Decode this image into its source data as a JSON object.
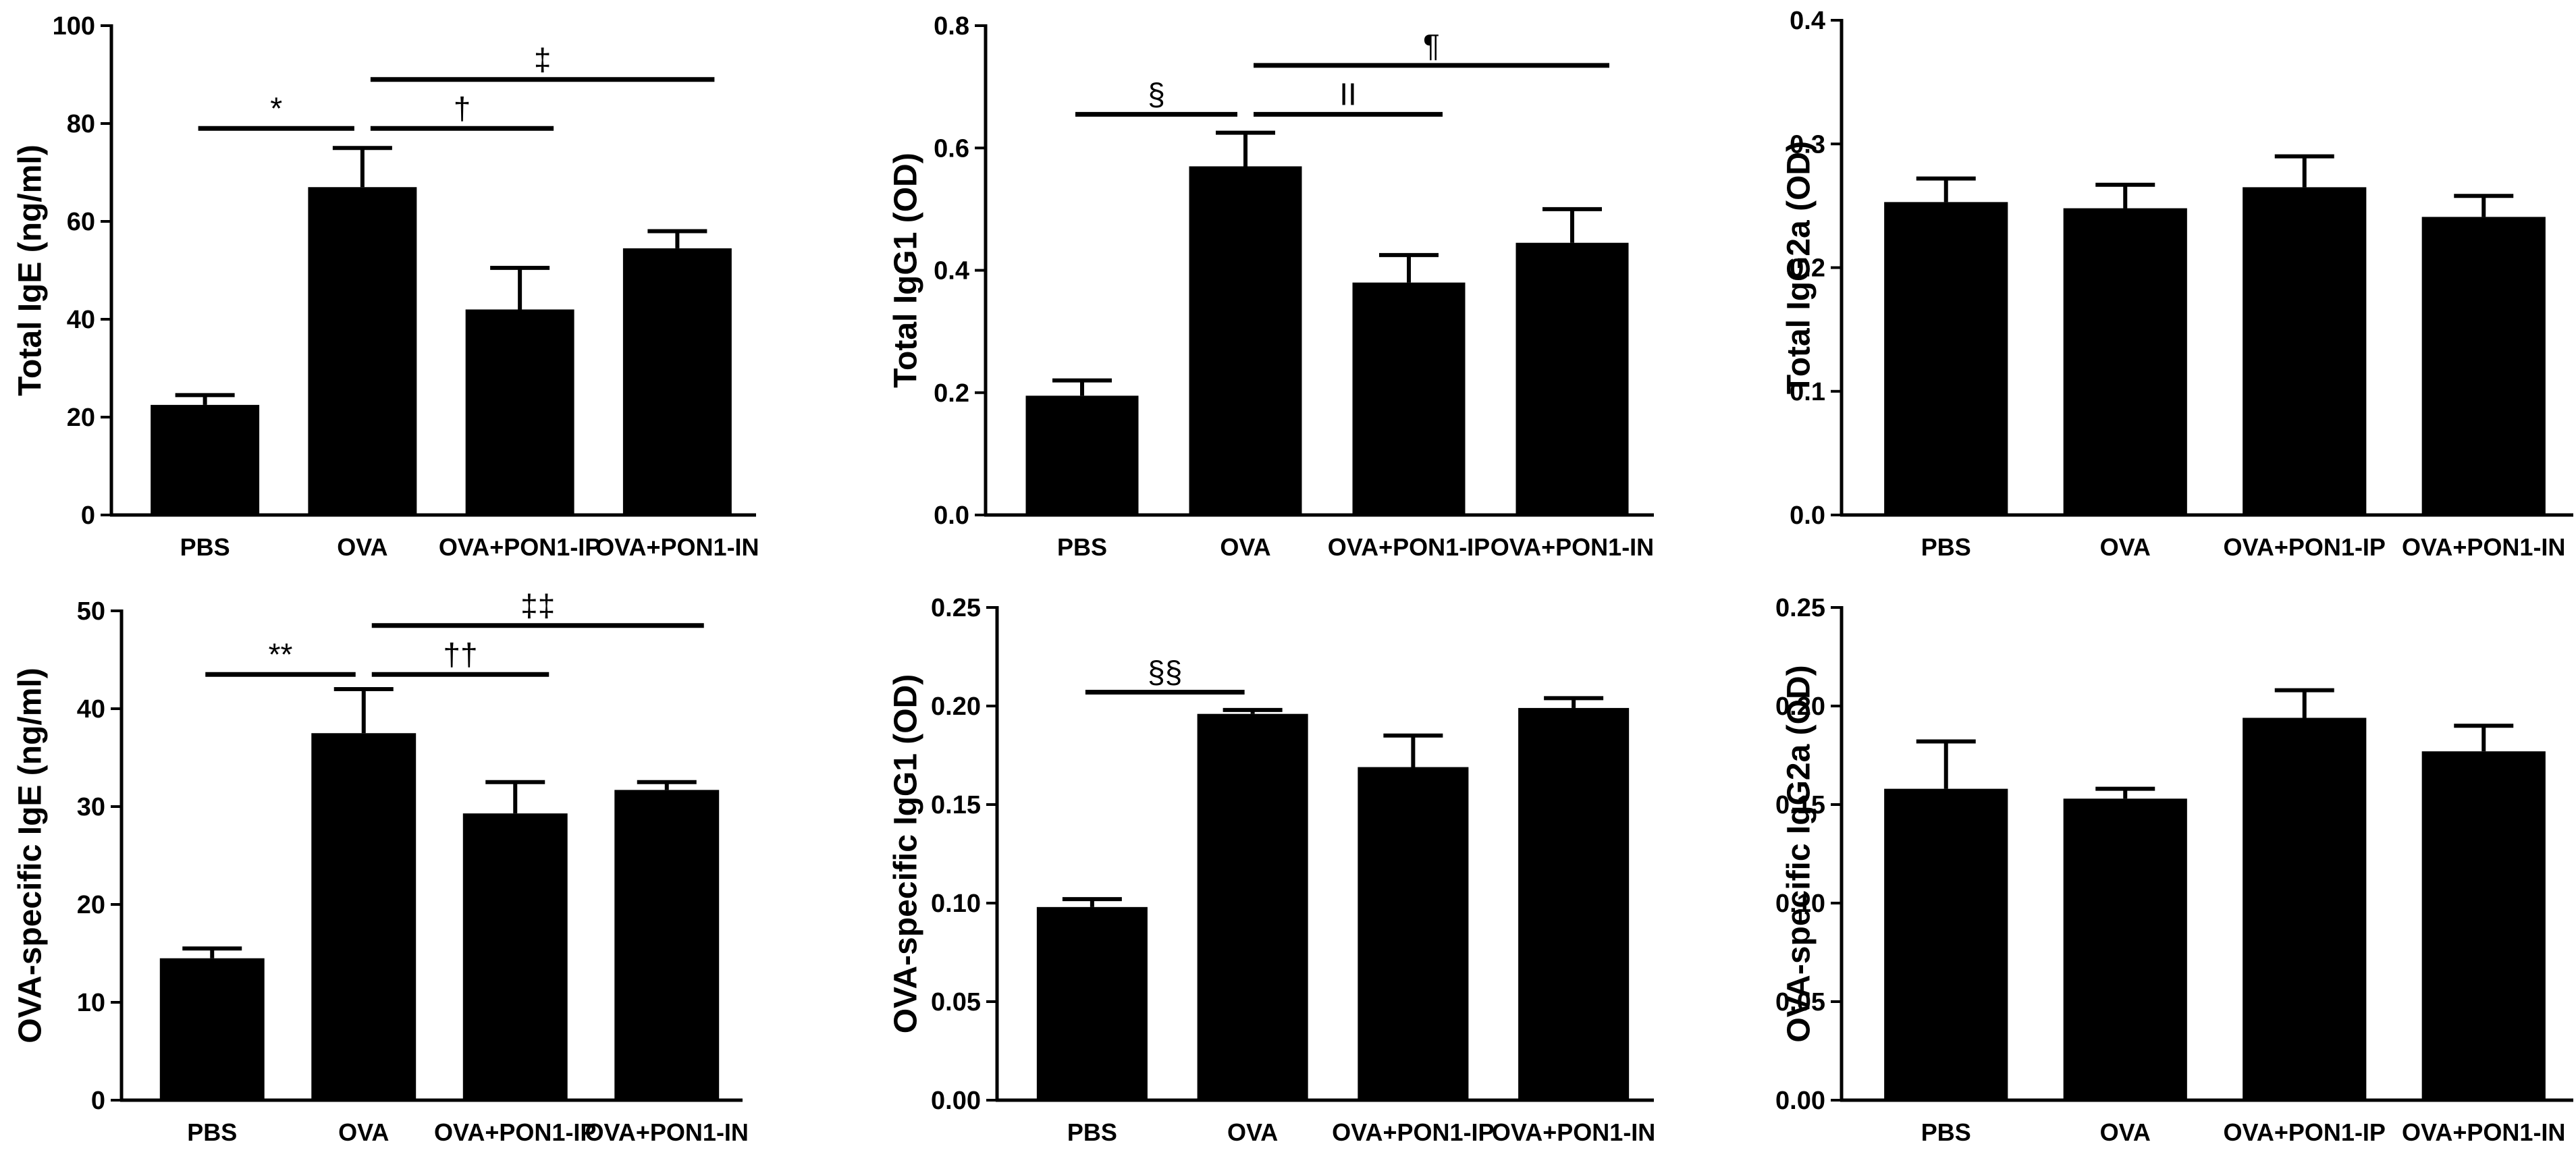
{
  "chart_data": [
    {
      "type": "bar",
      "panel": "top-left",
      "ylabel": "Total IgE (ng/ml)",
      "categories": [
        "PBS",
        "OVA",
        "OVA+PON1-IP",
        "OVA+PON1-IN"
      ],
      "values": [
        22.5,
        67,
        42,
        54.5
      ],
      "errors": [
        2,
        8,
        8.5,
        3.5
      ],
      "ylim": [
        0,
        100
      ],
      "yticks": [
        "0",
        "20",
        "40",
        "60",
        "80",
        "100"
      ],
      "yticks_values": [
        0,
        20,
        40,
        60,
        80,
        100
      ],
      "significance": [
        {
          "label": "*",
          "from": 0,
          "to": 1,
          "y": 79
        },
        {
          "label": "†",
          "from": 1,
          "to": 2,
          "y": 79
        },
        {
          "label": "‡",
          "from": 1,
          "to": 3,
          "y": 89
        }
      ]
    },
    {
      "type": "bar",
      "panel": "top-middle",
      "ylabel": "Total IgG1 (OD)",
      "categories": [
        "PBS",
        "OVA",
        "OVA+PON1-IP",
        "OVA+PON1-IN"
      ],
      "values": [
        0.195,
        0.57,
        0.38,
        0.445
      ],
      "errors": [
        0.025,
        0.055,
        0.045,
        0.055
      ],
      "ylim": [
        0,
        0.8
      ],
      "yticks": [
        "0.0",
        "0.2",
        "0.4",
        "0.6",
        "0.8"
      ],
      "yticks_values": [
        0,
        0.2,
        0.4,
        0.6,
        0.8
      ],
      "significance": [
        {
          "label": "§",
          "from": 0,
          "to": 1,
          "y": 0.655
        },
        {
          "label": "II",
          "from": 1,
          "to": 2,
          "y": 0.655
        },
        {
          "label": "¶",
          "from": 1,
          "to": 3,
          "y": 0.735
        }
      ]
    },
    {
      "type": "bar",
      "panel": "top-right",
      "ylabel": "Total IgG2a (OD)",
      "categories": [
        "PBS",
        "OVA",
        "OVA+PON1-IP",
        "OVA+PON1-IN"
      ],
      "values": [
        0.253,
        0.248,
        0.265,
        0.241
      ],
      "errors": [
        0.019,
        0.019,
        0.025,
        0.017
      ],
      "ylim": [
        0,
        0.4
      ],
      "yticks": [
        "0.0",
        "0.1",
        "0.2",
        "0.3",
        "0.4"
      ],
      "yticks_values": [
        0,
        0.1,
        0.2,
        0.3,
        0.4
      ],
      "significance": []
    },
    {
      "type": "bar",
      "panel": "bottom-left",
      "ylabel": "OVA-specific IgE (ng/ml)",
      "categories": [
        "PBS",
        "OVA",
        "OVA+PON1-IP",
        "OVA+PON1-IN"
      ],
      "values": [
        14.5,
        37.5,
        29.3,
        31.7
      ],
      "errors": [
        1,
        4.5,
        3.2,
        0.8
      ],
      "ylim": [
        0,
        50
      ],
      "yticks": [
        "0",
        "10",
        "20",
        "30",
        "40",
        "50"
      ],
      "yticks_values": [
        0,
        10,
        20,
        30,
        40,
        50
      ],
      "significance": [
        {
          "label": "**",
          "from": 0,
          "to": 1,
          "y": 43.5
        },
        {
          "label": "††",
          "from": 1,
          "to": 2,
          "y": 43.5
        },
        {
          "label": "‡‡",
          "from": 1,
          "to": 3,
          "y": 48.5
        }
      ]
    },
    {
      "type": "bar",
      "panel": "bottom-middle",
      "ylabel": "OVA-specific IgG1 (OD)",
      "categories": [
        "PBS",
        "OVA",
        "OVA+PON1-IP",
        "OVA+PON1-IN"
      ],
      "values": [
        0.098,
        0.196,
        0.169,
        0.199
      ],
      "errors": [
        0.004,
        0.002,
        0.016,
        0.005
      ],
      "ylim": [
        0,
        0.25
      ],
      "yticks": [
        "0.00",
        "0.05",
        "0.10",
        "0.15",
        "0.20",
        "0.25"
      ],
      "yticks_values": [
        0,
        0.05,
        0.1,
        0.15,
        0.2,
        0.25
      ],
      "significance": [
        {
          "label": "§§",
          "from": 0,
          "to": 1,
          "y": 0.207
        }
      ]
    },
    {
      "type": "bar",
      "panel": "bottom-right",
      "ylabel": "OVA-specific IgG2a (OD)",
      "categories": [
        "PBS",
        "OVA",
        "OVA+PON1-IP",
        "OVA+PON1-IN"
      ],
      "values": [
        0.158,
        0.153,
        0.194,
        0.177
      ],
      "errors": [
        0.024,
        0.005,
        0.014,
        0.013
      ],
      "ylim": [
        0,
        0.25
      ],
      "yticks": [
        "0.00",
        "0.05",
        "0.10",
        "0.15",
        "0.20",
        "0.25"
      ],
      "yticks_values": [
        0,
        0.05,
        0.1,
        0.15,
        0.2,
        0.25
      ],
      "significance": []
    }
  ]
}
